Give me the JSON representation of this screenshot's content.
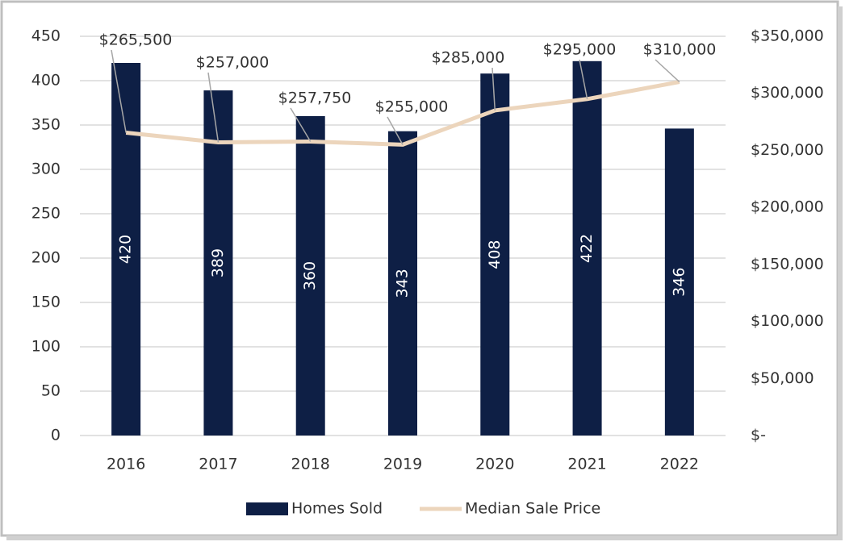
{
  "chart_data": {
    "type": "bar-line",
    "categories": [
      "2016",
      "2017",
      "2018",
      "2019",
      "2020",
      "2021",
      "2022"
    ],
    "series": [
      {
        "name": "Homes Sold",
        "color": "#0e1f45",
        "type": "bar",
        "values": [
          420,
          389,
          360,
          343,
          408,
          422,
          346
        ]
      },
      {
        "name": "Median Sale Price",
        "color": "#ecd5bc",
        "type": "line",
        "axis": "y2",
        "values": [
          265500,
          257000,
          257750,
          255000,
          285000,
          295000,
          310000
        ],
        "value_labels": [
          "$265,500",
          "$257,000",
          "$257,750",
          "$255,000",
          "$285,000",
          "$295,000",
          "$310,000"
        ]
      }
    ],
    "ylim": [
      0,
      450
    ],
    "yticks": [
      0,
      50,
      100,
      150,
      200,
      250,
      300,
      350,
      400,
      450
    ],
    "y2lim": [
      0,
      350000
    ],
    "y2ticks": [
      {
        "value": 0,
        "label": "$-"
      },
      {
        "value": 50000,
        "label": "$50,000"
      },
      {
        "value": 100000,
        "label": "$100,000"
      },
      {
        "value": 150000,
        "label": "$150,000"
      },
      {
        "value": 200000,
        "label": "$200,000"
      },
      {
        "value": 250000,
        "label": "$250,000"
      },
      {
        "value": 300000,
        "label": "$300,000"
      },
      {
        "value": 350000,
        "label": "$350,000"
      }
    ],
    "grid": true,
    "legend": "bottom"
  }
}
